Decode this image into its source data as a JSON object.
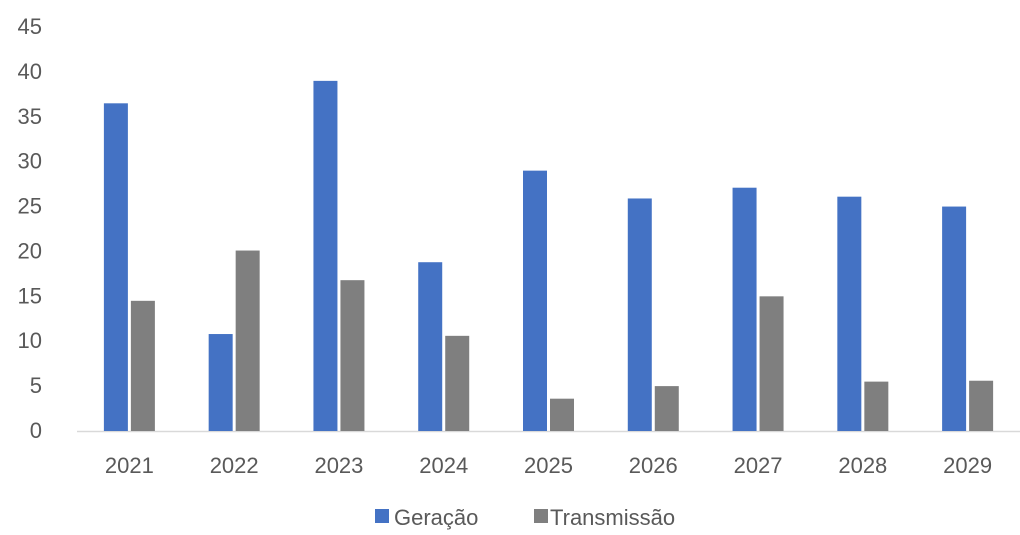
{
  "chart_data": {
    "type": "bar",
    "title": "",
    "xlabel": "",
    "ylabel": "",
    "categories": [
      "2021",
      "2022",
      "2023",
      "2024",
      "2025",
      "2026",
      "2027",
      "2028",
      "2029"
    ],
    "series": [
      {
        "name": "Geração",
        "color": "#4472C4",
        "values": [
          36.5,
          10.8,
          39.0,
          18.8,
          29.0,
          25.9,
          27.1,
          26.1,
          25.0
        ]
      },
      {
        "name": "Transmissão",
        "color": "#7F7F7F",
        "values": [
          14.5,
          20.1,
          16.8,
          10.6,
          3.6,
          5.0,
          15.0,
          5.5,
          5.6
        ]
      }
    ],
    "ylim": [
      0,
      45
    ],
    "yticks": [
      "0",
      "5",
      "10",
      "15",
      "20",
      "25",
      "30",
      "35",
      "40",
      "45"
    ],
    "grid": false,
    "legend_position": "bottom"
  }
}
